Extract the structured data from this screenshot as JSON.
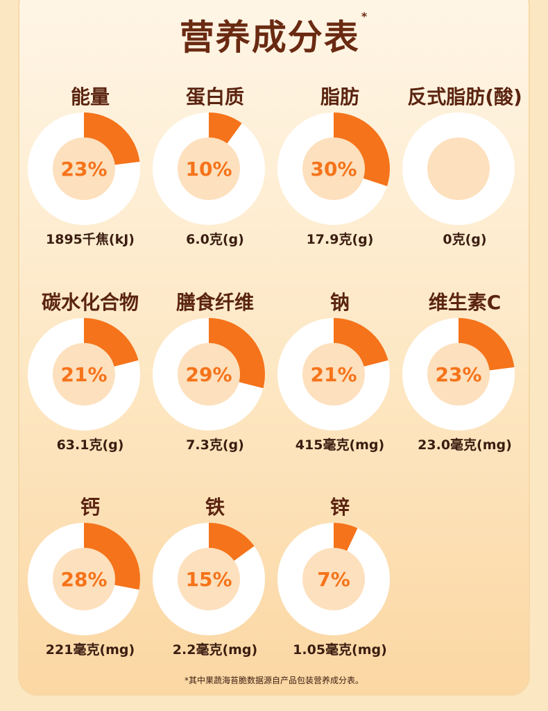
{
  "title": "营养成分表",
  "title_marker": "*",
  "footnote": "*其中果蔬海苔脆数据源自产品包装营养成分表。",
  "colors": {
    "accent": "#f5731a",
    "ring": "#ffffff",
    "center": "#fde0bd",
    "title": "#6a2a12"
  },
  "chart_data": {
    "type": "pie",
    "variant": "donut",
    "title": "营养成分表",
    "items": [
      {
        "name": "能量",
        "percent": 23,
        "percent_label": "23%",
        "amount": "1895千焦(kJ)"
      },
      {
        "name": "蛋白质",
        "percent": 10,
        "percent_label": "10%",
        "amount": "6.0克(g)"
      },
      {
        "name": "脂肪",
        "percent": 30,
        "percent_label": "30%",
        "amount": "17.9克(g)"
      },
      {
        "name": "反式脂肪(酸)",
        "percent": 0,
        "percent_label": "",
        "amount": "0克(g)"
      },
      {
        "name": "碳水化合物",
        "percent": 21,
        "percent_label": "21%",
        "amount": "63.1克(g)"
      },
      {
        "name": "膳食纤维",
        "percent": 29,
        "percent_label": "29%",
        "amount": "7.3克(g)"
      },
      {
        "name": "钠",
        "percent": 21,
        "percent_label": "21%",
        "amount": "415毫克(mg)"
      },
      {
        "name": "维生素C",
        "percent": 23,
        "percent_label": "23%",
        "amount": "23.0毫克(mg)"
      },
      {
        "name": "钙",
        "percent": 28,
        "percent_label": "28%",
        "amount": "221毫克(mg)"
      },
      {
        "name": "铁",
        "percent": 15,
        "percent_label": "15%",
        "amount": "2.2毫克(mg)"
      },
      {
        "name": "锌",
        "percent": 7,
        "percent_label": "7%",
        "amount": "1.05毫克(mg)"
      }
    ]
  }
}
